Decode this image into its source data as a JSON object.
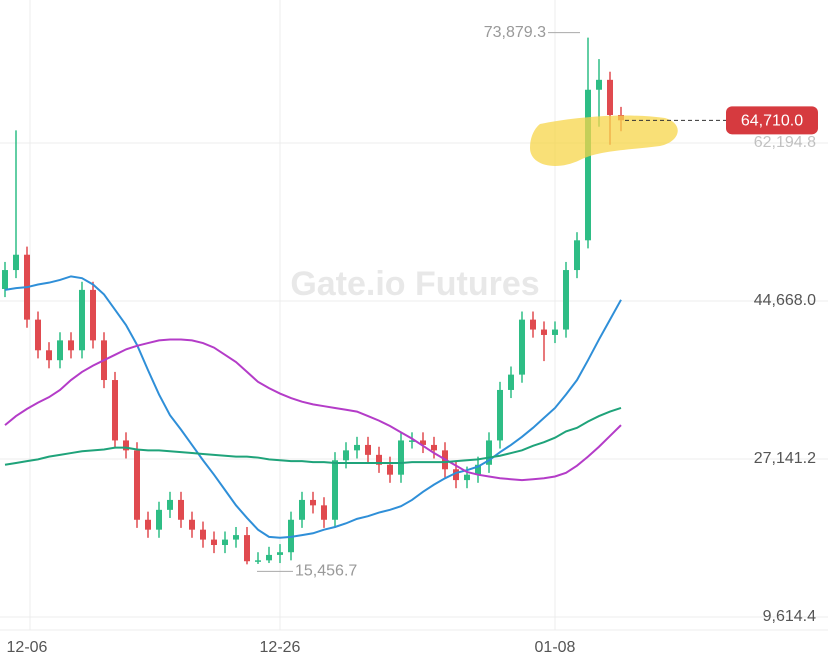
{
  "chart_data": {
    "type": "candlestick",
    "watermark": "Gate.io Futures",
    "categories": [
      null,
      null,
      "12-06",
      null,
      null,
      null,
      null,
      null,
      null,
      null,
      null,
      null,
      null,
      null,
      null,
      null,
      null,
      null,
      null,
      null,
      null,
      null,
      null,
      null,
      null,
      "12-26",
      null,
      null,
      null,
      null,
      null,
      null,
      null,
      null,
      null,
      null,
      null,
      null,
      null,
      null,
      null,
      null,
      null,
      null,
      null,
      null,
      null,
      null,
      null,
      null,
      "01-08",
      null,
      null,
      null,
      null,
      null,
      null
    ],
    "open": [
      46000,
      48100,
      49800,
      42600,
      39200,
      38100,
      40300,
      39200,
      45900,
      40300,
      35900,
      29200,
      28100,
      20400,
      19300,
      21500,
      22600,
      20400,
      19300,
      18200,
      17600,
      18200,
      18700,
      15800,
      15900,
      16500,
      16800,
      20400,
      22600,
      22000,
      20400,
      27000,
      28100,
      28700,
      27600,
      26500,
      25400,
      29200,
      29200,
      28700,
      28100,
      26000,
      24800,
      25400,
      26500,
      29200,
      34800,
      36500,
      42600,
      41500,
      40900,
      41500,
      48100,
      51400,
      68100,
      69200,
      65300
    ],
    "high": [
      49000,
      63600,
      50700,
      43500,
      40100,
      41200,
      41200,
      46800,
      46800,
      41200,
      36800,
      30100,
      29000,
      21300,
      22400,
      23500,
      23500,
      21300,
      20200,
      19100,
      19100,
      19600,
      19600,
      16800,
      17400,
      17700,
      21300,
      23500,
      23500,
      22900,
      27900,
      29000,
      29600,
      29600,
      28500,
      27400,
      30100,
      30100,
      30100,
      29600,
      29000,
      26900,
      26300,
      27400,
      30100,
      35700,
      37400,
      43500,
      43500,
      42400,
      42400,
      49000,
      52300,
      73879.3,
      71500,
      70100,
      66200
    ],
    "low": [
      45100,
      47200,
      41700,
      38300,
      37200,
      37200,
      38300,
      38300,
      39400,
      35000,
      28300,
      27200,
      19500,
      18400,
      18400,
      20600,
      19500,
      18400,
      17300,
      16700,
      16700,
      17300,
      15456.7,
      15500,
      15600,
      15600,
      15900,
      19500,
      21100,
      19500,
      19500,
      26100,
      27200,
      26700,
      25600,
      24500,
      24500,
      28300,
      27800,
      27200,
      25100,
      23900,
      23900,
      24500,
      25600,
      28300,
      33900,
      35600,
      40600,
      38000,
      40000,
      40600,
      47200,
      50500,
      64000,
      62000,
      63500
    ],
    "close": [
      48100,
      49800,
      42600,
      39200,
      38100,
      40300,
      39200,
      45900,
      40300,
      35900,
      29200,
      28100,
      20400,
      19300,
      21500,
      22600,
      20400,
      19300,
      18200,
      17600,
      18200,
      18700,
      15800,
      15900,
      16500,
      16800,
      20400,
      22600,
      22000,
      20400,
      27000,
      28100,
      28700,
      27600,
      26500,
      25400,
      29200,
      29200,
      28700,
      28100,
      26000,
      24800,
      25400,
      26500,
      29200,
      34800,
      36500,
      42600,
      41500,
      40900,
      41500,
      48100,
      51400,
      68100,
      69200,
      65300,
      64710
    ],
    "up_color": "#2ebd85",
    "down_color": "#e04a4f",
    "series": [
      {
        "color": "#2f8fd8",
        "values": [
          45900,
          46100,
          46200,
          46500,
          46700,
          47000,
          47400,
          47200,
          46500,
          45400,
          43700,
          42000,
          39800,
          37000,
          34300,
          32000,
          30400,
          28700,
          27000,
          25400,
          23700,
          22000,
          20600,
          19300,
          18500,
          18400,
          18500,
          18700,
          18900,
          19300,
          19600,
          20000,
          20500,
          20800,
          21200,
          21500,
          21900,
          22600,
          23500,
          24300,
          25000,
          25600,
          25900,
          26300,
          27000,
          27900,
          28700,
          29600,
          30600,
          31700,
          32800,
          34300,
          35900,
          38100,
          40400,
          42600,
          44800
        ]
      },
      {
        "color": "#b43cc8",
        "values": [
          30900,
          31900,
          32700,
          33400,
          34000,
          34800,
          35900,
          36800,
          37500,
          38100,
          38700,
          39300,
          39700,
          40000,
          40300,
          40400,
          40400,
          40300,
          40000,
          39500,
          38700,
          37900,
          36800,
          35700,
          35000,
          34400,
          33900,
          33500,
          33200,
          33000,
          32800,
          32600,
          32400,
          31900,
          31400,
          30800,
          30100,
          29400,
          28600,
          27800,
          27100,
          26400,
          25700,
          25400,
          25200,
          25000,
          24900,
          24800,
          24900,
          25000,
          25200,
          25600,
          26400,
          27400,
          28500,
          29700,
          30900
        ]
      },
      {
        "color": "#1fa37a",
        "values": [
          26500,
          26700,
          26900,
          27100,
          27400,
          27600,
          27800,
          28000,
          28100,
          28200,
          28400,
          28400,
          28200,
          28100,
          28100,
          28000,
          27900,
          27800,
          27700,
          27600,
          27500,
          27400,
          27400,
          27300,
          27100,
          27000,
          26900,
          26900,
          26800,
          26800,
          26700,
          26700,
          26700,
          26700,
          26700,
          26700,
          26700,
          26800,
          26800,
          26800,
          26800,
          26900,
          27000,
          27100,
          27300,
          27500,
          27800,
          28100,
          28600,
          29000,
          29500,
          30200,
          30600,
          31300,
          31900,
          32400,
          32800
        ]
      }
    ],
    "ylim": [
      8172,
      78056
    ],
    "yticks": [
      {
        "value": 9614.4,
        "label": "9,614.4"
      },
      {
        "value": 27141.2,
        "label": "27,141.2"
      },
      {
        "value": 44668.0,
        "label": "44,668.0"
      },
      {
        "value": 62194.8,
        "label": "62,194.8"
      }
    ],
    "grid": true,
    "high_marker": {
      "value": 73879.3,
      "label": "73,879.3"
    },
    "low_marker": {
      "value": 15456.7,
      "label": "15,456.7"
    },
    "last_price": {
      "value": 64710,
      "label": "64,710.0",
      "color": "#d63a3f"
    }
  }
}
